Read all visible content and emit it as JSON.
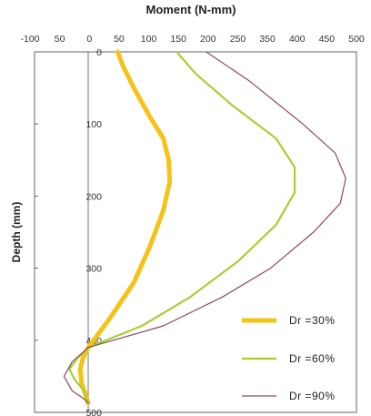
{
  "chart_data": {
    "type": "line",
    "title": "Moment (N-mm)",
    "xlabel": "",
    "ylabel": "Depth (mm)",
    "xlim": [
      -100,
      500
    ],
    "ylim": [
      0,
      500
    ],
    "y_inverted": true,
    "x_axis_position": "top",
    "grid": false,
    "legend_position": "bottom-right",
    "x_ticks": [
      "-100",
      "50",
      "0",
      "50",
      "100",
      "150",
      "200",
      "250",
      "350",
      "400",
      "450",
      "500"
    ],
    "y_ticks": [
      "0",
      "100",
      "200",
      "300",
      "400",
      "500"
    ],
    "series": [
      {
        "name": "Dr =30%",
        "color": "#f5c218",
        "points": [
          [
            55,
            0
          ],
          [
            65,
            20
          ],
          [
            85,
            50
          ],
          [
            115,
            90
          ],
          [
            140,
            120
          ],
          [
            150,
            150
          ],
          [
            152,
            180
          ],
          [
            140,
            220
          ],
          [
            115,
            270
          ],
          [
            85,
            320
          ],
          [
            40,
            370
          ],
          [
            0,
            410
          ],
          [
            -10,
            425
          ],
          [
            -15,
            440
          ],
          [
            -12,
            460
          ],
          [
            -5,
            475
          ],
          [
            0,
            487
          ]
        ]
      },
      {
        "name": "Dr =60%",
        "color": "#a8cf32",
        "points": [
          [
            165,
            0
          ],
          [
            200,
            30
          ],
          [
            270,
            75
          ],
          [
            350,
            120
          ],
          [
            385,
            160
          ],
          [
            385,
            195
          ],
          [
            350,
            240
          ],
          [
            280,
            290
          ],
          [
            190,
            340
          ],
          [
            100,
            380
          ],
          [
            0,
            410
          ],
          [
            -20,
            425
          ],
          [
            -35,
            440
          ],
          [
            -25,
            455
          ],
          [
            -10,
            468
          ],
          [
            0,
            487
          ]
        ]
      },
      {
        "name": "Dr =90%",
        "color": "#8b4a5a",
        "points": [
          [
            220,
            0
          ],
          [
            300,
            40
          ],
          [
            400,
            100
          ],
          [
            460,
            140
          ],
          [
            480,
            175
          ],
          [
            470,
            210
          ],
          [
            420,
            250
          ],
          [
            340,
            300
          ],
          [
            250,
            340
          ],
          [
            140,
            380
          ],
          [
            0,
            410
          ],
          [
            -30,
            430
          ],
          [
            -45,
            450
          ],
          [
            -30,
            470
          ],
          [
            -10,
            480
          ],
          [
            0,
            487
          ]
        ]
      }
    ]
  }
}
